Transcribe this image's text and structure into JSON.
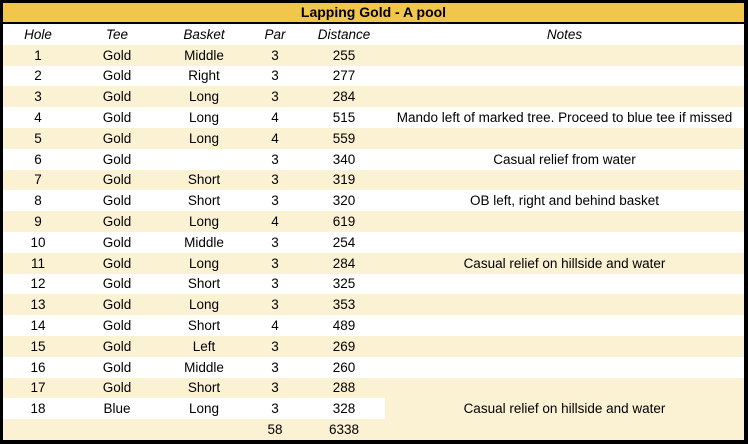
{
  "title": "Lapping Gold - A pool",
  "columns": {
    "hole": "Hole",
    "tee": "Tee",
    "basket": "Basket",
    "par": "Par",
    "distance": "Distance",
    "notes": "Notes"
  },
  "rows": [
    {
      "hole": "1",
      "tee": "Gold",
      "basket": "Middle",
      "par": "3",
      "distance": "255",
      "notes": ""
    },
    {
      "hole": "2",
      "tee": "Gold",
      "basket": "Right",
      "par": "3",
      "distance": "277",
      "notes": ""
    },
    {
      "hole": "3",
      "tee": "Gold",
      "basket": "Long",
      "par": "3",
      "distance": "284",
      "notes": ""
    },
    {
      "hole": "4",
      "tee": "Gold",
      "basket": "Long",
      "par": "4",
      "distance": "515",
      "notes": "Mando left of marked tree. Proceed to blue tee if missed"
    },
    {
      "hole": "5",
      "tee": "Gold",
      "basket": "Long",
      "par": "4",
      "distance": "559",
      "notes": ""
    },
    {
      "hole": "6",
      "tee": "Gold",
      "basket": "",
      "par": "3",
      "distance": "340",
      "notes": "Casual relief from water"
    },
    {
      "hole": "7",
      "tee": "Gold",
      "basket": "Short",
      "par": "3",
      "distance": "319",
      "notes": ""
    },
    {
      "hole": "8",
      "tee": "Gold",
      "basket": "Short",
      "par": "3",
      "distance": "320",
      "notes": "OB left, right and behind basket"
    },
    {
      "hole": "9",
      "tee": "Gold",
      "basket": "Long",
      "par": "4",
      "distance": "619",
      "notes": ""
    },
    {
      "hole": "10",
      "tee": "Gold",
      "basket": "Middle",
      "par": "3",
      "distance": "254",
      "notes": ""
    },
    {
      "hole": "11",
      "tee": "Gold",
      "basket": "Long",
      "par": "3",
      "distance": "284",
      "notes": "Casual relief on hillside and water"
    },
    {
      "hole": "12",
      "tee": "Gold",
      "basket": "Short",
      "par": "3",
      "distance": "325",
      "notes": ""
    },
    {
      "hole": "13",
      "tee": "Gold",
      "basket": "Long",
      "par": "3",
      "distance": "353",
      "notes": ""
    },
    {
      "hole": "14",
      "tee": "Gold",
      "basket": "Short",
      "par": "4",
      "distance": "489",
      "notes": ""
    },
    {
      "hole": "15",
      "tee": "Gold",
      "basket": "Left",
      "par": "3",
      "distance": "269",
      "notes": ""
    },
    {
      "hole": "16",
      "tee": "Gold",
      "basket": "Middle",
      "par": "3",
      "distance": "260",
      "notes": ""
    },
    {
      "hole": "17",
      "tee": "Gold",
      "basket": "Short",
      "par": "3",
      "distance": "288",
      "notes": ""
    },
    {
      "hole": "18",
      "tee": "Blue",
      "basket": "Long",
      "par": "3",
      "distance": "328",
      "notes": "Casual relief on hillside and water",
      "notes_cell_shaded": true
    }
  ],
  "totals": {
    "par": "58",
    "distance": "6338"
  },
  "colors": {
    "title_bg": "#F2C64A",
    "row_stripe": "#FBF1D3",
    "row_plain": "#FFFFFF",
    "border": "#000000"
  }
}
